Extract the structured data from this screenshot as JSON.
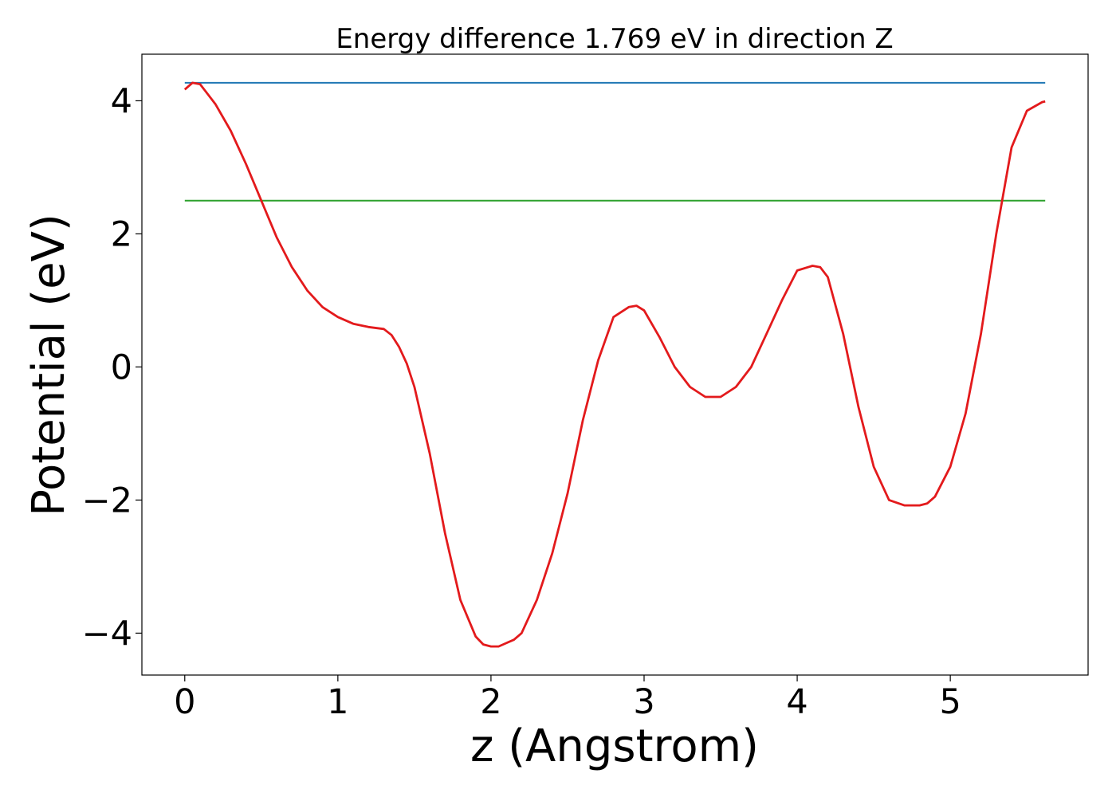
{
  "chart_data": {
    "type": "line",
    "title": "Energy difference 1.769 eV in direction Z",
    "xlabel": "z (Angstrom)",
    "ylabel": "Potential (eV)",
    "xlim": [
      -0.28,
      5.9
    ],
    "ylim": [
      -4.63,
      4.7
    ],
    "xticks": [
      0,
      1,
      2,
      3,
      4,
      5
    ],
    "xtick_labels": [
      "0",
      "1",
      "2",
      "3",
      "4",
      "5"
    ],
    "yticks": [
      -4,
      -2,
      0,
      2,
      4
    ],
    "ytick_labels": [
      "−4",
      "−2",
      "0",
      "2",
      "4"
    ],
    "grid": false,
    "series": [
      {
        "color": "#1f77b4",
        "x": [
          0,
          5.62
        ],
        "y": [
          4.27,
          4.27
        ]
      },
      {
        "color": "#2ca02c",
        "x": [
          0,
          5.62
        ],
        "y": [
          2.5,
          2.5
        ]
      },
      {
        "color": "#e31a1c",
        "x": [
          0,
          0.05,
          0.1,
          0.2,
          0.3,
          0.4,
          0.5,
          0.6,
          0.7,
          0.8,
          0.9,
          1.0,
          1.1,
          1.2,
          1.3,
          1.35,
          1.4,
          1.45,
          1.5,
          1.6,
          1.7,
          1.8,
          1.9,
          1.95,
          2.0,
          2.05,
          2.1,
          2.15,
          2.2,
          2.3,
          2.4,
          2.5,
          2.6,
          2.7,
          2.8,
          2.9,
          2.95,
          3.0,
          3.1,
          3.2,
          3.3,
          3.4,
          3.5,
          3.6,
          3.7,
          3.8,
          3.9,
          4.0,
          4.1,
          4.15,
          4.2,
          4.3,
          4.4,
          4.5,
          4.6,
          4.7,
          4.8,
          4.85,
          4.9,
          5.0,
          5.1,
          5.2,
          5.3,
          5.4,
          5.5,
          5.6,
          5.62
        ],
        "y": [
          4.17,
          4.27,
          4.25,
          3.95,
          3.55,
          3.05,
          2.5,
          1.95,
          1.5,
          1.15,
          0.9,
          0.75,
          0.65,
          0.6,
          0.57,
          0.48,
          0.3,
          0.05,
          -0.3,
          -1.3,
          -2.5,
          -3.5,
          -4.05,
          -4.17,
          -4.2,
          -4.2,
          -4.15,
          -4.1,
          -4.0,
          -3.5,
          -2.8,
          -1.9,
          -0.8,
          0.1,
          0.75,
          0.9,
          0.92,
          0.85,
          0.45,
          0.0,
          -0.3,
          -0.45,
          -0.45,
          -0.3,
          0.0,
          0.5,
          1.0,
          1.45,
          1.52,
          1.5,
          1.35,
          0.5,
          -0.6,
          -1.5,
          -2.0,
          -2.08,
          -2.08,
          -2.05,
          -1.95,
          -1.5,
          -0.7,
          0.5,
          2.0,
          3.3,
          3.85,
          3.98,
          3.99
        ]
      }
    ]
  }
}
